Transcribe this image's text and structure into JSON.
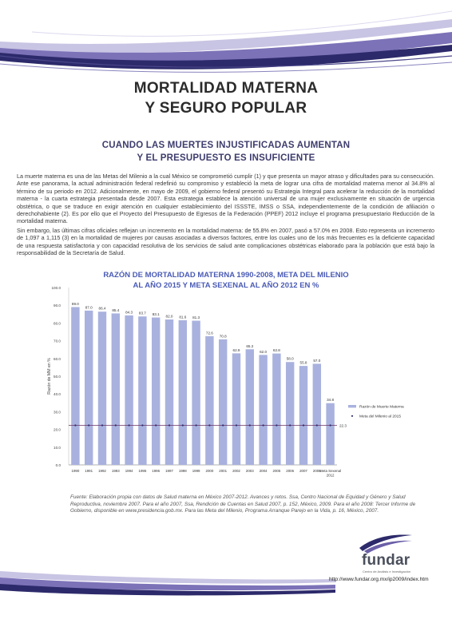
{
  "document": {
    "title_line1": "MORTALIDAD MATERNA",
    "title_line2": "Y SEGURO POPULAR",
    "subtitle_line1": "CUANDO LAS MUERTES INJUSTIFICADAS AUMENTAN",
    "subtitle_line2": "Y EL PRESUPUESTO ES INSUFICIENTE",
    "paragraph1": "La muerte materna es una de las Metas del Milenio a la cual México se comprometió cumplir (1) y que presenta un mayor atraso y dificultades para su consecución. Ante ese panorama, la actual administración federal redefinió su compromiso y estableció la meta de lograr una cifra de mortalidad materna menor al 34.8% al término de su periodo en 2012. Adicionalmente, en mayo de 2009, el gobierno federal presentó su Estrategia Integral para acelerar la reducción de la mortalidad materna - la cuarta estrategia presentada desde 2007. Esta estrategia establece la atención universal de una mujer exclusivamente en situación de urgencia obstétrica, o que se traduce en exigir atención en cualquier establecimiento del ISSSTE, IMSS o SSA, independientemente de la condición de afiliación o derechohabiente (2). Es por ello que el Proyecto del Presupuesto de Egresos de la Federación (PPEF) 2012 incluye el programa presupuestario Reducción de la mortalidad materna.",
    "paragraph2": "Sin embargo, las últimas cifras oficiales reflejan un incremento en la mortalidad materna: de 55.8% en 2007, pasó a 57.0% en 2008. Esto representa un incremento de 1,097 a 1,115 (3) en la mortalidad de mujeres por causas asociadas a diversos factores, entre los cuales uno de los más frecuentes es la deficiente capacidad de una respuesta satisfactoria y con capacidad resolutiva de los servicios de salud ante complicaciones obstétricas elaborado para la población que está bajo la responsabilidad de la Secretaría de Salud.",
    "chart_title_line1": "RAZÓN DE MORTALIDAD MATERNA 1990-2008, META DEL MILENIO",
    "chart_title_line2": "AL AÑO 2015 Y META SEXENAL AL AÑO 2012 EN %",
    "source": "Fuente: Elaboración propia con datos de Salud materna en México 2007-2012. Avances y retos. Ssa, Centro Nacional de Equidad y Género y Salud Reproductiva, noviembre 2007. Para el año 2007, Ssa, Rendición de Cuentas en Salud 2007, p. 152, México, 2009. Para el año 2008: Tercer Informe de Gobierno, disponible en www.presidencia.gob.mx. Para las Meta del Milenio, Programa Arranque Parejo en la Vida, p. 16, México, 2007.",
    "logo": "fundar",
    "logo_tagline": "Centro de Análisis e Investigación",
    "url": "http://www.fundar.org.mx/ip2009/index.htm"
  },
  "colors": {
    "bar": "#a9b2de",
    "goal_line": "#6b2f63",
    "goal_marker": "#2a2f6e",
    "chart_title": "#4a5bb5",
    "heading": "#2b2b2b",
    "subheading": "#3d3c6d",
    "swoosh_dark": "#2d2a6b",
    "swoosh_mid": "#6b5fa8",
    "swoosh_light": "#b9b4d9"
  },
  "chart_data": {
    "type": "bar",
    "categories": [
      "1990",
      "1991",
      "1992",
      "1993",
      "1994",
      "1995",
      "1996",
      "1997",
      "1998",
      "1999",
      "2000",
      "2001",
      "2002",
      "2003",
      "2004",
      "2005",
      "2006",
      "2007",
      "2008",
      "Meta Sexenal 2012"
    ],
    "series": [
      {
        "name": "Razón de Muerte Materna",
        "values": [
          89.0,
          87.0,
          86.4,
          85.4,
          84.3,
          83.7,
          83.1,
          82.0,
          81.6,
          81.3,
          72.6,
          70.8,
          62.9,
          65.2,
          62.0,
          62.8,
          58.0,
          55.8,
          57.0,
          34.8
        ]
      },
      {
        "name": "Meta del Milenio al 2015",
        "type": "line",
        "value": 22.3
      }
    ],
    "ylabel": "Razón de MM en %",
    "ylim": [
      0,
      100
    ],
    "yticks": [
      "0.0",
      "10.0",
      "20.0",
      "30.0",
      "40.0",
      "50.0",
      "60.0",
      "70.0",
      "80.0",
      "90.0",
      "100.0"
    ],
    "goal_label": "22.3",
    "legend": [
      "Razón de Muerte Materna",
      "Meta del Milenio al 2015"
    ],
    "legend_position": "right",
    "grid": false
  }
}
